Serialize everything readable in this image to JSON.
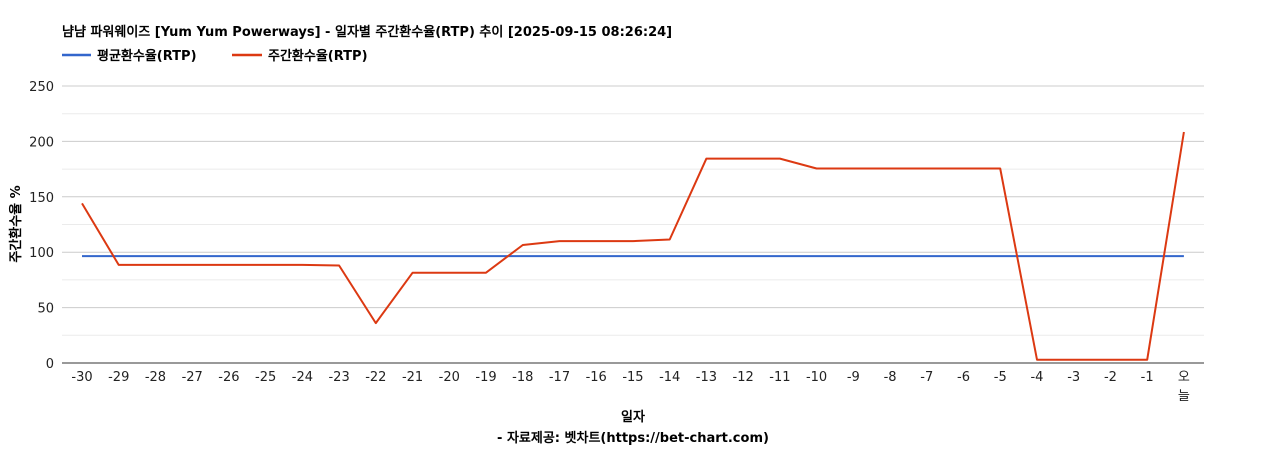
{
  "chart_data": {
    "type": "line",
    "title": "냠냠 파워웨이즈 [Yum Yum Powerways] - 일자별 주간환수율(RTP) 추이 [2025-09-15 08:26:24]",
    "xlabel": "일자",
    "ylabel": "주간환수율 %",
    "source": "- 자료제공: 벳차트(https://bet-chart.com)",
    "categories": [
      "-30",
      "-29",
      "-28",
      "-27",
      "-26",
      "-25",
      "-24",
      "-23",
      "-22",
      "-21",
      "-20",
      "-19",
      "-18",
      "-17",
      "-16",
      "-15",
      "-14",
      "-13",
      "-12",
      "-11",
      "-10",
      "-9",
      "-8",
      "-7",
      "-6",
      "-5",
      "-4",
      "-3",
      "-2",
      "-1",
      "오늘"
    ],
    "ylim": [
      0,
      250
    ],
    "yticks": [
      0,
      50,
      100,
      150,
      200,
      250
    ],
    "grid": true,
    "legend_position": "top-left",
    "series": [
      {
        "name": "평균환수율(RTP)",
        "color": "#3366cc",
        "values": [
          96.5,
          96.5,
          96.5,
          96.5,
          96.5,
          96.5,
          96.5,
          96.5,
          96.5,
          96.5,
          96.5,
          96.5,
          96.5,
          96.5,
          96.5,
          96.5,
          96.5,
          96.5,
          96.5,
          96.5,
          96.5,
          96.5,
          96.5,
          96.5,
          96.5,
          96.5,
          96.5,
          96.5,
          96.5,
          96.5,
          96.5
        ]
      },
      {
        "name": "주간환수율(RTP)",
        "color": "#dc3912",
        "values": [
          144,
          88.5,
          88.5,
          88.5,
          88.5,
          88.5,
          88.5,
          88,
          36,
          81.5,
          81.5,
          81.5,
          106.5,
          110,
          110,
          110,
          111.5,
          184.5,
          184.5,
          184.5,
          175.5,
          175.5,
          175.5,
          175.5,
          175.5,
          175.5,
          3,
          3,
          3,
          3,
          208.5
        ]
      }
    ]
  }
}
